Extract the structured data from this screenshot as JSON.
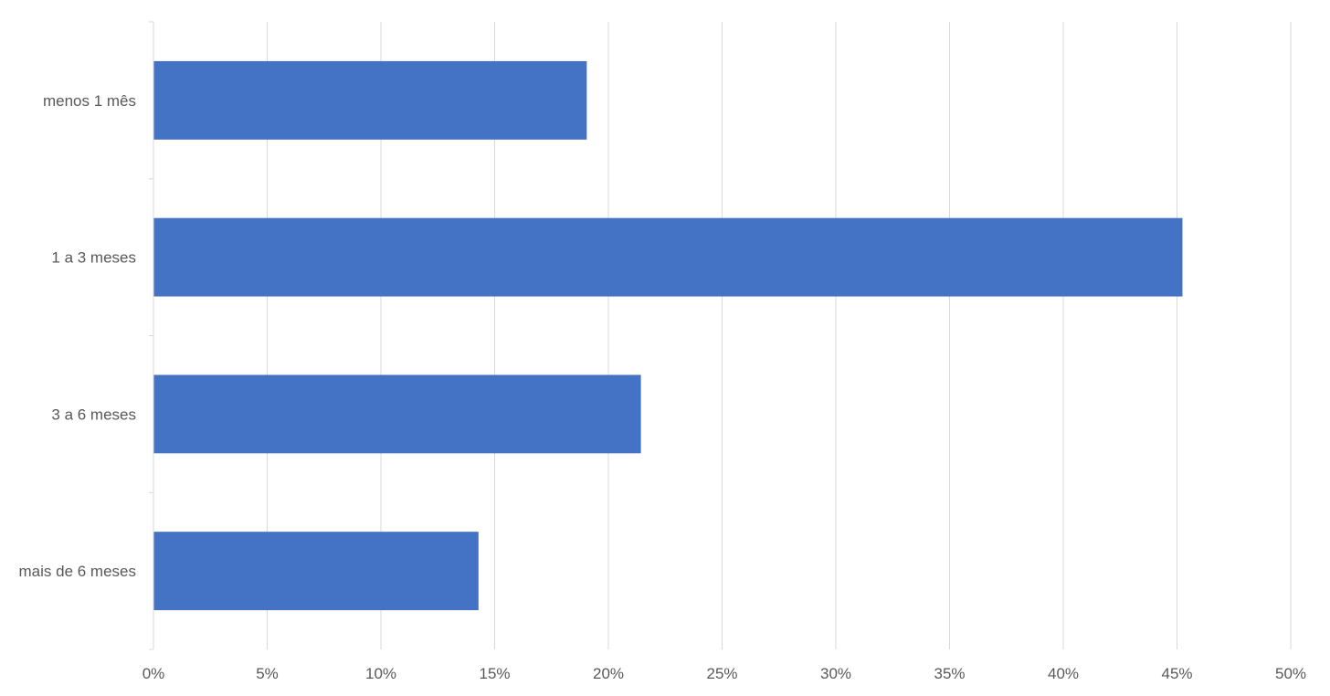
{
  "chart_data": {
    "type": "bar",
    "orientation": "horizontal",
    "categories": [
      "menos 1 mês",
      "1 a 3 meses",
      "3 a 6 meses",
      "mais de 6 meses"
    ],
    "series": [
      {
        "values": [
          19.05,
          45.24,
          21.43,
          14.29
        ]
      }
    ],
    "value_format": "percent",
    "xlim": [
      0,
      50
    ],
    "x_ticks": [
      "0%",
      "5%",
      "10%",
      "15%",
      "20%",
      "25%",
      "30%",
      "35%",
      "40%",
      "45%",
      "50%"
    ],
    "title": "",
    "xlabel": "",
    "ylabel": "",
    "grid": "vertical",
    "legend": "none",
    "colors": {
      "bar": "#4472c4",
      "grid": "#d9d9d9",
      "text": "#595959"
    }
  }
}
